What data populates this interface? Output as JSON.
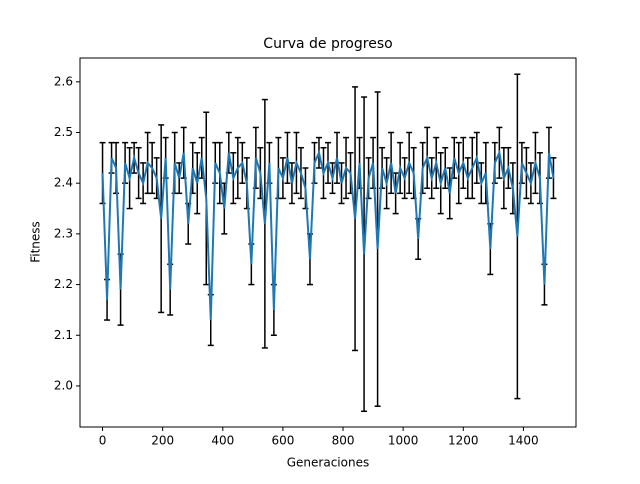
{
  "chart_data": {
    "type": "errorbar-line",
    "title": "Curva de progreso",
    "x_label": "Generaciones",
    "y_label": "Fitness",
    "x": [
      0,
      15,
      30,
      45,
      60,
      75,
      90,
      105,
      120,
      135,
      150,
      165,
      180,
      195,
      210,
      225,
      240,
      255,
      270,
      285,
      300,
      315,
      330,
      345,
      360,
      375,
      390,
      405,
      420,
      435,
      450,
      465,
      480,
      495,
      510,
      525,
      540,
      555,
      570,
      585,
      600,
      615,
      630,
      645,
      660,
      675,
      690,
      705,
      720,
      735,
      750,
      765,
      780,
      795,
      810,
      825,
      840,
      855,
      870,
      885,
      900,
      915,
      930,
      945,
      960,
      975,
      990,
      1005,
      1020,
      1035,
      1050,
      1065,
      1080,
      1095,
      1110,
      1125,
      1140,
      1155,
      1170,
      1185,
      1200,
      1215,
      1230,
      1245,
      1260,
      1275,
      1290,
      1305,
      1320,
      1335,
      1350,
      1365,
      1380,
      1395,
      1410,
      1425,
      1440,
      1455,
      1470,
      1485,
      1500
    ],
    "series": [
      {
        "color": "#1f77b4",
        "ecolor": "#000000",
        "values": [
          2.42,
          2.17,
          2.45,
          2.43,
          2.19,
          2.44,
          2.41,
          2.45,
          2.42,
          2.4,
          2.44,
          2.43,
          2.41,
          2.33,
          2.45,
          2.19,
          2.44,
          2.41,
          2.46,
          2.32,
          2.43,
          2.4,
          2.45,
          2.37,
          2.13,
          2.44,
          2.42,
          2.35,
          2.46,
          2.41,
          2.43,
          2.44,
          2.4,
          2.24,
          2.45,
          2.42,
          2.32,
          2.44,
          2.15,
          2.43,
          2.41,
          2.45,
          2.4,
          2.44,
          2.42,
          2.39,
          2.25,
          2.44,
          2.46,
          2.42,
          2.44,
          2.41,
          2.45,
          2.4,
          2.43,
          2.42,
          2.33,
          2.44,
          2.26,
          2.41,
          2.44,
          2.27,
          2.43,
          2.4,
          2.44,
          2.38,
          2.43,
          2.41,
          2.44,
          2.42,
          2.29,
          2.43,
          2.45,
          2.41,
          2.44,
          2.4,
          2.43,
          2.38,
          2.45,
          2.42,
          2.44,
          2.41,
          2.43,
          2.45,
          2.4,
          2.42,
          2.27,
          2.44,
          2.46,
          2.41,
          2.43,
          2.39,
          2.295,
          2.44,
          2.42,
          2.4,
          2.44,
          2.41,
          2.2,
          2.46,
          2.41
        ],
        "errors": [
          0.06,
          0.04,
          0.03,
          0.05,
          0.07,
          0.04,
          0.06,
          0.03,
          0.05,
          0.04,
          0.06,
          0.05,
          0.04,
          0.185,
          0.04,
          0.05,
          0.06,
          0.03,
          0.05,
          0.04,
          0.05,
          0.06,
          0.04,
          0.17,
          0.05,
          0.04,
          0.06,
          0.05,
          0.04,
          0.05,
          0.06,
          0.04,
          0.05,
          0.04,
          0.06,
          0.05,
          0.245,
          0.04,
          0.05,
          0.06,
          0.04,
          0.05,
          0.04,
          0.06,
          0.05,
          0.04,
          0.05,
          0.04,
          0.03,
          0.05,
          0.04,
          0.03,
          0.05,
          0.04,
          0.06,
          0.04,
          0.26,
          0.05,
          0.31,
          0.04,
          0.05,
          0.31,
          0.04,
          0.05,
          0.06,
          0.04,
          0.05,
          0.04,
          0.06,
          0.05,
          0.04,
          0.05,
          0.06,
          0.04,
          0.05,
          0.06,
          0.04,
          0.05,
          0.04,
          0.06,
          0.05,
          0.04,
          0.06,
          0.05,
          0.04,
          0.06,
          0.05,
          0.04,
          0.05,
          0.06,
          0.04,
          0.05,
          0.32,
          0.04,
          0.05,
          0.04,
          0.06,
          0.05,
          0.04,
          0.05,
          0.04
        ]
      }
    ],
    "xlim": [
      -75,
      1575
    ],
    "ylim": [
      1.919,
      2.647
    ],
    "xticks": [
      0,
      200,
      400,
      600,
      800,
      1000,
      1200,
      1400
    ],
    "yticks": [
      {
        "value": 2,
        "label": "2.0"
      },
      2.1,
      2.2,
      2.3,
      2.4,
      2.5,
      2.6
    ]
  }
}
